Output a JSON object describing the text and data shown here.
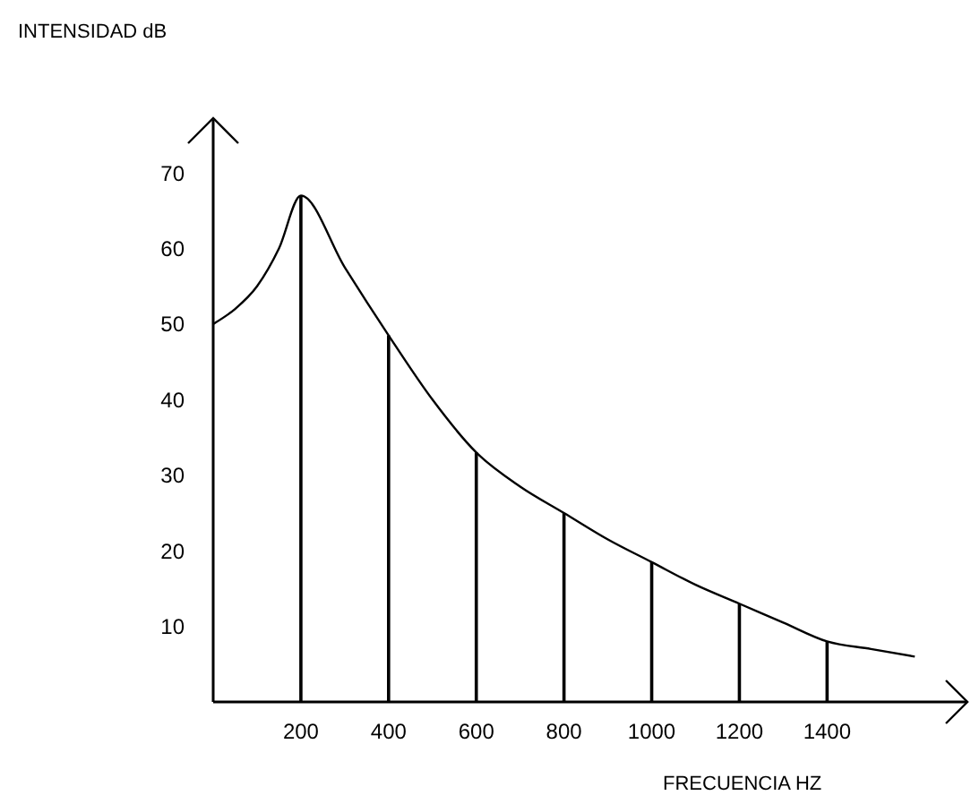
{
  "chart_data": {
    "type": "line",
    "xlabel": "FRECUENCIA HZ",
    "ylabel": "INTENSIDAD dB",
    "xlim": [
      0,
      1720
    ],
    "ylim": [
      0,
      77
    ],
    "xticks": [
      200,
      400,
      600,
      800,
      1000,
      1200,
      1400
    ],
    "yticks": [
      10,
      20,
      30,
      40,
      50,
      60,
      70
    ],
    "marker": "none",
    "line_style": "solid",
    "series": [
      {
        "color": "#000000",
        "x": [
          0,
          50,
          100,
          150,
          200,
          300,
          400,
          500,
          600,
          700,
          800,
          900,
          1000,
          1100,
          1200,
          1300,
          1400,
          1500,
          1600
        ],
        "values": [
          50,
          52,
          55,
          60,
          67,
          57.5,
          48.5,
          40,
          33,
          28.5,
          25,
          21.5,
          18.5,
          15.5,
          13,
          10.5,
          8,
          7,
          6
        ]
      },
      {
        "type": "bar",
        "color": "#000000",
        "x": [
          200,
          400,
          600,
          800,
          1000,
          1200,
          1400
        ],
        "values": [
          67,
          48.5,
          33,
          25,
          18.5,
          13,
          8
        ]
      }
    ]
  }
}
